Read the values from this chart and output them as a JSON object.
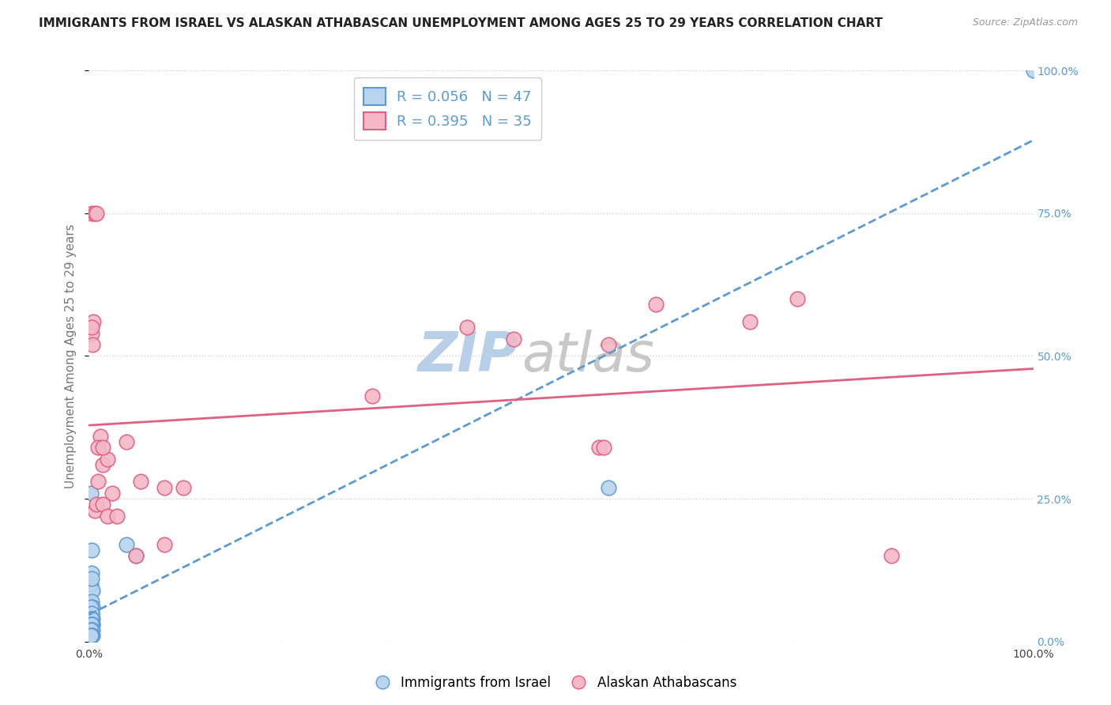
{
  "title": "IMMIGRANTS FROM ISRAEL VS ALASKAN ATHABASCAN UNEMPLOYMENT AMONG AGES 25 TO 29 YEARS CORRELATION CHART",
  "source": "Source: ZipAtlas.com",
  "ylabel": "Unemployment Among Ages 25 to 29 years",
  "xlabel": "",
  "xlim": [
    0,
    1
  ],
  "ylim": [
    0,
    1
  ],
  "xtick_labels": [
    "0.0%",
    "100.0%"
  ],
  "ytick_labels": [
    "0.0%",
    "25.0%",
    "50.0%",
    "75.0%",
    "100.0%"
  ],
  "ytick_positions": [
    0,
    0.25,
    0.5,
    0.75,
    1.0
  ],
  "grid_color": "#cccccc",
  "background_color": "#ffffff",
  "watermark_text": "ZIP",
  "watermark_text2": "atlas",
  "israel_color": "#b8d4ef",
  "israel_edge_color": "#5b9bd5",
  "israel_R": 0.056,
  "israel_N": 47,
  "israel_trend_color": "#5b9bd5",
  "athabascan_color": "#f4b8c8",
  "athabascan_edge_color": "#e06080",
  "athabascan_R": 0.395,
  "athabascan_N": 35,
  "athabascan_trend_color": "#e06080",
  "israel_x": [
    0.002,
    0.003,
    0.002,
    0.004,
    0.003,
    0.002,
    0.003,
    0.004,
    0.002,
    0.003,
    0.002,
    0.003,
    0.004,
    0.003,
    0.002,
    0.003,
    0.002,
    0.003,
    0.002,
    0.003,
    0.004,
    0.003,
    0.002,
    0.003,
    0.004,
    0.003,
    0.002,
    0.003,
    0.002,
    0.003,
    0.002,
    0.003,
    0.004,
    0.002,
    0.003,
    0.002,
    0.003,
    0.004,
    0.003,
    0.002,
    0.04,
    0.003,
    0.05,
    0.55,
    0.003,
    0.003,
    1.0
  ],
  "israel_y": [
    0.26,
    0.09,
    0.1,
    0.09,
    0.07,
    0.05,
    0.05,
    0.06,
    0.04,
    0.04,
    0.03,
    0.05,
    0.04,
    0.04,
    0.06,
    0.03,
    0.03,
    0.05,
    0.03,
    0.04,
    0.03,
    0.03,
    0.04,
    0.04,
    0.03,
    0.03,
    0.03,
    0.03,
    0.02,
    0.02,
    0.02,
    0.02,
    0.02,
    0.02,
    0.01,
    0.01,
    0.01,
    0.01,
    0.01,
    0.01,
    0.17,
    0.16,
    0.15,
    0.27,
    0.12,
    0.11,
    1.0
  ],
  "athabascan_x": [
    0.003,
    0.005,
    0.012,
    0.015,
    0.02,
    0.025,
    0.04,
    0.055,
    0.08,
    0.1,
    0.003,
    0.004,
    0.006,
    0.008,
    0.01,
    0.015,
    0.02,
    0.03,
    0.05,
    0.08,
    0.4,
    0.45,
    0.55,
    0.6,
    0.7,
    0.75,
    0.85,
    0.003,
    0.006,
    0.008,
    0.01,
    0.015,
    0.54,
    0.545,
    0.3
  ],
  "athabascan_y": [
    0.54,
    0.56,
    0.36,
    0.31,
    0.32,
    0.26,
    0.35,
    0.28,
    0.27,
    0.27,
    0.55,
    0.52,
    0.23,
    0.24,
    0.28,
    0.24,
    0.22,
    0.22,
    0.15,
    0.17,
    0.55,
    0.53,
    0.52,
    0.59,
    0.56,
    0.6,
    0.15,
    0.75,
    0.75,
    0.75,
    0.34,
    0.34,
    0.34,
    0.34,
    0.43
  ],
  "legend_israel_label": "Immigrants from Israel",
  "legend_athabascan_label": "Alaskan Athabascans",
  "title_fontsize": 11,
  "source_fontsize": 9,
  "ylabel_fontsize": 11,
  "tick_fontsize": 10,
  "legend_fontsize": 13,
  "watermark_fontsize_zip": 50,
  "watermark_fontsize_atlas": 50,
  "watermark_color": "#ccd9ea"
}
